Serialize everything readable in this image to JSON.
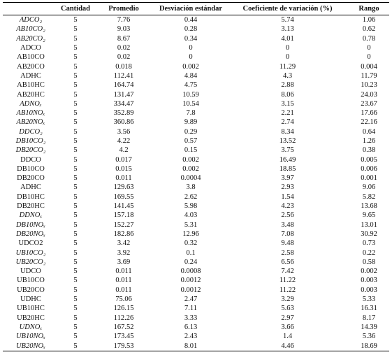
{
  "table": {
    "header": [
      "Cantidad",
      "Promedio",
      "Desviación estándar",
      "Coeficiente de variación (%)",
      "Rango"
    ],
    "rows": [
      {
        "label": "ADCO₂",
        "italic": true,
        "cells": [
          5,
          7.76,
          0.44,
          5.74,
          1.06
        ]
      },
      {
        "label": "AB10CO₂",
        "italic": true,
        "cells": [
          5,
          9.03,
          0.28,
          3.13,
          0.62
        ]
      },
      {
        "label": "AB20CO₂",
        "italic": true,
        "cells": [
          5,
          8.67,
          0.34,
          4.01,
          0.78
        ]
      },
      {
        "label": "ADCO",
        "italic": false,
        "cells": [
          5,
          0.02,
          0,
          0,
          0
        ]
      },
      {
        "label": "AB10CO",
        "italic": false,
        "cells": [
          5,
          0.02,
          0,
          0,
          0
        ]
      },
      {
        "label": "AB20CO",
        "italic": false,
        "cells": [
          5,
          0.018,
          0.002,
          11.29,
          0.004
        ]
      },
      {
        "label": "ADHC",
        "italic": false,
        "cells": [
          5,
          112.41,
          4.84,
          4.3,
          11.79
        ]
      },
      {
        "label": "AB10HC",
        "italic": false,
        "cells": [
          5,
          164.74,
          4.75,
          2.88,
          10.23
        ]
      },
      {
        "label": "AB20HC",
        "italic": false,
        "cells": [
          5,
          131.47,
          10.59,
          8.06,
          24.03
        ]
      },
      {
        "label": "ADNOₓ",
        "italic": true,
        "cells": [
          5,
          334.47,
          10.54,
          3.15,
          23.67
        ]
      },
      {
        "label": "AB10NOₓ",
        "italic": true,
        "cells": [
          5,
          352.89,
          7.8,
          2.21,
          17.66
        ]
      },
      {
        "label": "AB20NOₓ",
        "italic": true,
        "cells": [
          5,
          360.86,
          9.89,
          2.74,
          22.16
        ]
      },
      {
        "label": "DDCO₂",
        "italic": true,
        "cells": [
          5,
          3.56,
          0.29,
          8.34,
          0.64
        ]
      },
      {
        "label": "DB10CO₂",
        "italic": true,
        "cells": [
          5,
          4.22,
          0.57,
          13.52,
          1.26
        ]
      },
      {
        "label": "DB20CO₂",
        "italic": true,
        "cells": [
          5,
          4.2,
          0.15,
          3.75,
          0.38
        ]
      },
      {
        "label": "DDCO",
        "italic": false,
        "cells": [
          5,
          0.017,
          0.002,
          16.49,
          0.005
        ]
      },
      {
        "label": "DB10CO",
        "italic": false,
        "cells": [
          5,
          0.015,
          0.002,
          18.85,
          0.006
        ]
      },
      {
        "label": "DB20CO",
        "italic": false,
        "cells": [
          5,
          0.011,
          0.0004,
          3.97,
          0.001
        ]
      },
      {
        "label": "ADHC",
        "italic": false,
        "cells": [
          5,
          129.63,
          3.8,
          2.93,
          9.06
        ]
      },
      {
        "label": "DB10HC",
        "italic": false,
        "cells": [
          5,
          169.55,
          2.62,
          1.54,
          5.82
        ]
      },
      {
        "label": "DB20HC",
        "italic": false,
        "cells": [
          5,
          141.45,
          5.98,
          4.23,
          13.68
        ]
      },
      {
        "label": "DDNOₓ",
        "italic": true,
        "cells": [
          5,
          157.18,
          4.03,
          2.56,
          9.65
        ]
      },
      {
        "label": "DB10NOₓ",
        "italic": true,
        "cells": [
          5,
          152.27,
          5.31,
          3.48,
          13.01
        ]
      },
      {
        "label": "DB20NOₓ",
        "italic": true,
        "cells": [
          5,
          182.86,
          12.96,
          7.08,
          30.92
        ]
      },
      {
        "label": "UDCO2",
        "italic": false,
        "cells": [
          5,
          3.42,
          0.32,
          9.48,
          0.73
        ]
      },
      {
        "label": "UB10CO₂",
        "italic": true,
        "cells": [
          5,
          3.92,
          0.1,
          2.58,
          0.22
        ]
      },
      {
        "label": "UB20CO₂",
        "italic": true,
        "cells": [
          5,
          3.69,
          0.24,
          6.56,
          0.58
        ]
      },
      {
        "label": "UDCO",
        "italic": false,
        "cells": [
          5,
          0.011,
          0.0008,
          7.42,
          0.002
        ]
      },
      {
        "label": "UB10CO",
        "italic": false,
        "cells": [
          5,
          0.011,
          0.0012,
          11.22,
          0.003
        ]
      },
      {
        "label": "UB20CO",
        "italic": false,
        "cells": [
          5,
          0.011,
          0.0012,
          11.22,
          0.003
        ]
      },
      {
        "label": "UDHC",
        "italic": false,
        "cells": [
          5,
          75.06,
          2.47,
          3.29,
          5.33
        ]
      },
      {
        "label": "UB10HC",
        "italic": false,
        "cells": [
          5,
          126.15,
          7.11,
          5.63,
          16.31
        ]
      },
      {
        "label": "UB20HC",
        "italic": false,
        "cells": [
          5,
          112.26,
          3.33,
          2.97,
          8.17
        ]
      },
      {
        "label": "UDNOₓ",
        "italic": true,
        "cells": [
          5,
          167.52,
          6.13,
          3.66,
          14.39
        ]
      },
      {
        "label": "UB10NOₓ",
        "italic": true,
        "cells": [
          5,
          173.45,
          2.43,
          1.4,
          5.36
        ]
      },
      {
        "label": "UB20NOₓ",
        "italic": true,
        "cells": [
          5,
          179.53,
          8.01,
          4.46,
          18.69
        ]
      }
    ]
  }
}
